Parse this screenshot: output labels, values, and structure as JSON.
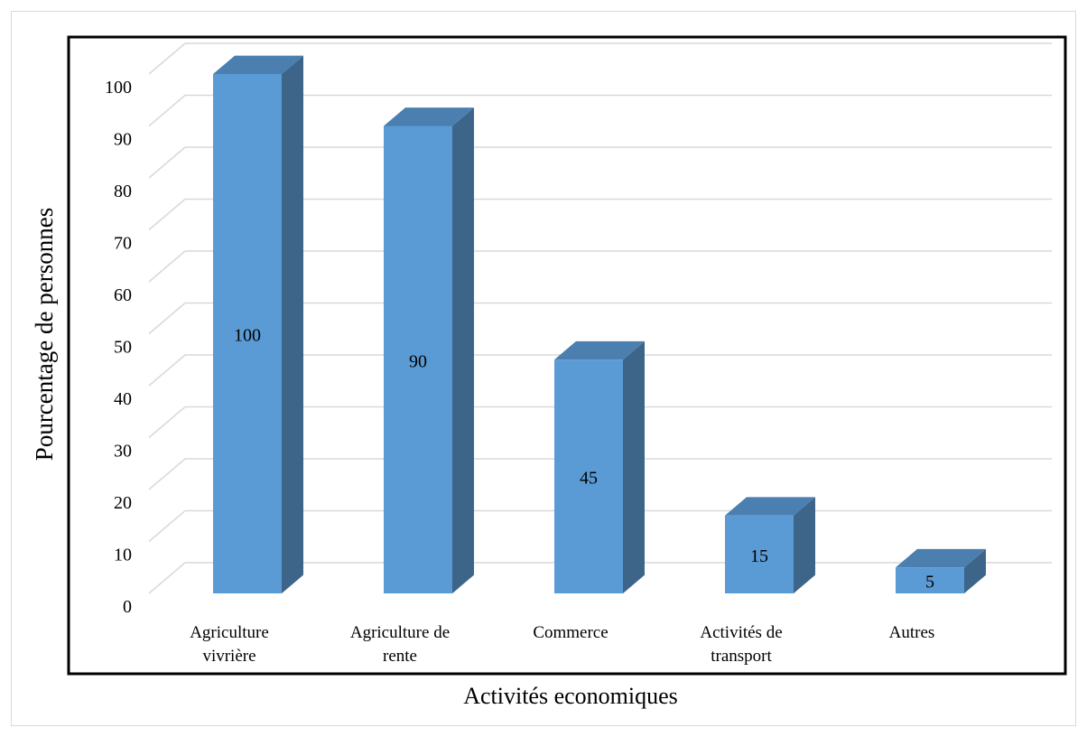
{
  "chart_data": {
    "type": "bar",
    "style": "3d-column",
    "categories": [
      [
        "Agriculture",
        "vivrière"
      ],
      [
        "Agriculture de",
        "rente"
      ],
      [
        "Commerce"
      ],
      [
        "Activités de",
        "transport"
      ],
      [
        "Autres"
      ]
    ],
    "values": [
      100,
      90,
      45,
      15,
      5
    ],
    "data_labels": [
      "100",
      "90",
      "45",
      "15",
      "5"
    ],
    "xlabel": "Activités economiques",
    "ylabel": "Pourcentage de personnes",
    "ylim": [
      0,
      100
    ],
    "yticks": [
      0,
      10,
      20,
      30,
      40,
      50,
      60,
      70,
      80,
      90,
      100
    ],
    "grid": true,
    "colors": {
      "bar_front": "#5b9bd5",
      "bar_side": "#3c6589",
      "bar_top": "#4a7fb0",
      "grid": "#d9d9d9",
      "frame": "#000000"
    }
  }
}
